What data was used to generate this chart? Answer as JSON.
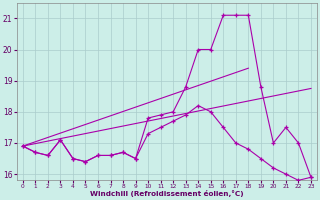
{
  "xlabel": "Windchill (Refroidissement éolien,°C)",
  "background_color": "#cceee8",
  "grid_color": "#aacccc",
  "line_color": "#aa00aa",
  "hours": [
    0,
    1,
    2,
    3,
    4,
    5,
    6,
    7,
    8,
    9,
    10,
    11,
    12,
    13,
    14,
    15,
    16,
    17,
    18,
    19,
    20,
    21,
    22,
    23
  ],
  "line1": [
    16.9,
    16.7,
    16.6,
    17.1,
    16.5,
    16.4,
    16.6,
    16.6,
    16.7,
    16.5,
    17.8,
    17.9,
    18.0,
    18.8,
    20.0,
    20.0,
    21.1,
    21.1,
    21.1,
    18.8,
    17.0,
    17.5,
    17.0,
    15.9
  ],
  "line2": [
    16.9,
    16.7,
    16.6,
    17.1,
    16.5,
    16.4,
    16.6,
    16.6,
    16.7,
    16.5,
    17.3,
    17.5,
    17.7,
    17.9,
    18.2,
    18.0,
    17.5,
    17.0,
    16.8,
    16.5,
    16.2,
    16.0,
    15.8,
    15.9
  ],
  "trend1_x": [
    0,
    18
  ],
  "trend1_y": [
    16.9,
    19.4
  ],
  "trend2_x": [
    0,
    23
  ],
  "trend2_y": [
    16.9,
    18.75
  ],
  "ylim": [
    15.8,
    21.5
  ],
  "xlim": [
    -0.5,
    23.5
  ],
  "yticks": [
    16,
    17,
    18,
    19,
    20,
    21
  ],
  "xticks": [
    0,
    1,
    2,
    3,
    4,
    5,
    6,
    7,
    8,
    9,
    10,
    11,
    12,
    13,
    14,
    15,
    16,
    17,
    18,
    19,
    20,
    21,
    22,
    23
  ]
}
